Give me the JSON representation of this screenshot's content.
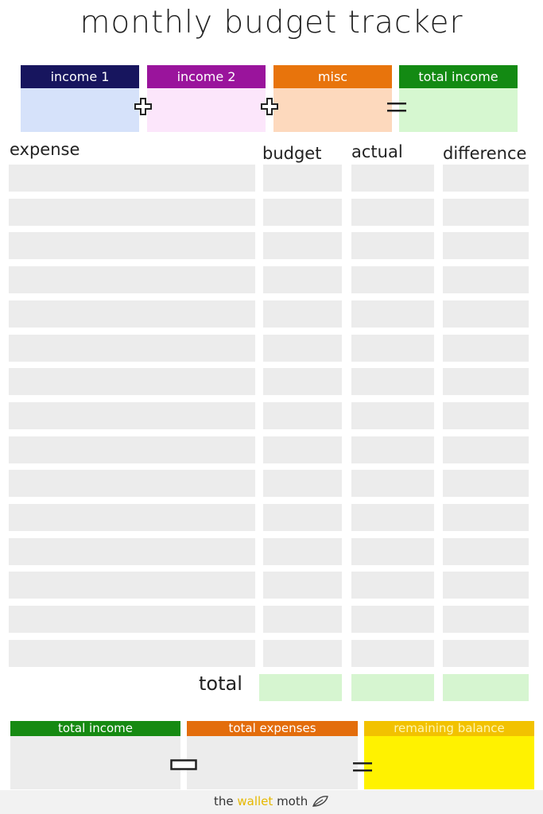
{
  "title": "monthly budget tracker",
  "income_boxes": [
    {
      "label": "income 1",
      "head_color": "#17155e",
      "body_color": "#d6e2fa"
    },
    {
      "label": "income 2",
      "head_color": "#9a149c",
      "body_color": "#fce6fb"
    },
    {
      "label": "misc",
      "head_color": "#e8740c",
      "body_color": "#fdd9bd"
    },
    {
      "label": "total income",
      "head_color": "#138a13",
      "body_color": "#d6f7d0"
    }
  ],
  "operators": {
    "plus": "+",
    "minus": "−",
    "equals": "="
  },
  "columns": {
    "expense": "expense",
    "budget": "budget",
    "actual": "actual",
    "difference": "difference"
  },
  "row_count": 15,
  "total_label": "total",
  "summary": [
    {
      "label": "total income",
      "head_color": "#168a12",
      "body_color": "#ececec"
    },
    {
      "label": "total expenses",
      "head_color": "#e36d0c",
      "body_color": "#ececec"
    },
    {
      "label": "remaining balance",
      "head_color": "#f2c200",
      "body_color": "#fff200"
    }
  ],
  "footer": {
    "prefix": "the ",
    "brand": "wallet",
    "suffix": " moth"
  }
}
